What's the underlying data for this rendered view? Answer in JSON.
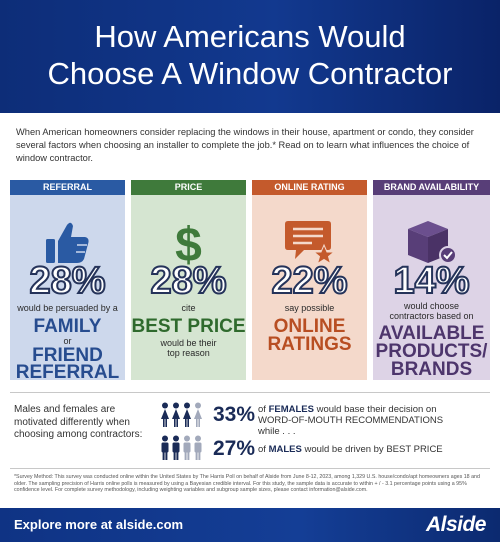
{
  "header": {
    "title_line1": "How Americans Would",
    "title_line2": "Choose A Window Contractor"
  },
  "intro": "When American homeowners consider replacing the windows in their house, apartment or condo, they consider several factors when choosing an installer to complete the job.* Read on to learn what influences the choice of window contractor.",
  "columns": [
    {
      "tab": "REFERRAL",
      "pct": "28%",
      "pre": "would be persuaded by a",
      "big1": "FAMILY",
      "mid": "or",
      "big2": "FRIEND",
      "big3": "REFERRAL",
      "icon": "thumbs-up-icon",
      "color": "#2a5aa3"
    },
    {
      "tab": "PRICE",
      "pct": "28%",
      "pre": "cite",
      "big1": "BEST PRICE",
      "post1": "would be their",
      "post2": "top reason",
      "icon": "dollar-sign-icon",
      "color": "#3f7a3b"
    },
    {
      "tab": "ONLINE RATING",
      "pct": "22%",
      "pre": "say possible",
      "big1": "ONLINE",
      "big2": "RATINGS",
      "icon": "review-star-icon",
      "color": "#c45a2c"
    },
    {
      "tab": "BRAND AVAILABILITY",
      "pct": "14%",
      "pre1": "would choose",
      "pre2": "contractors based on",
      "big1": "AVAILABLE",
      "big2": "PRODUCTS/",
      "big3": "BRANDS",
      "icon": "product-box-icon",
      "color": "#583e78"
    }
  ],
  "gender": {
    "intro": "Males and females are motivated differently when choosing among contractors:",
    "female_pct": "33%",
    "female_text_pre": "of",
    "female_strong": "FEMALES",
    "female_text_post": "would base their decision on",
    "female_line2": "WORD-OF-MOUTH RECOMMENDATIONS",
    "while": "while . . .",
    "male_pct": "27%",
    "male_text_pre": "of",
    "male_strong": "MALES",
    "male_text_post": "would be driven by BEST PRICE"
  },
  "footnote": "*Survey Method: This survey was conducted online within the United States by The Harris Poll on behalf of Alside from June 8-12, 2023, among 1,329 U.S. house/condo/apt homeowners ages 18 and older. The sampling precision of Harris online polls is measured by using a Bayesian credible interval. For this study, the sample data is accurate to within + / - 3.1 percentage points using a 95% confidence level. For complete survey methodology, including weighting variables and subgroup sample sizes, please contact information@alside.com.",
  "footer": {
    "explore": "Explore more at alside.com",
    "logo": "Alside"
  }
}
